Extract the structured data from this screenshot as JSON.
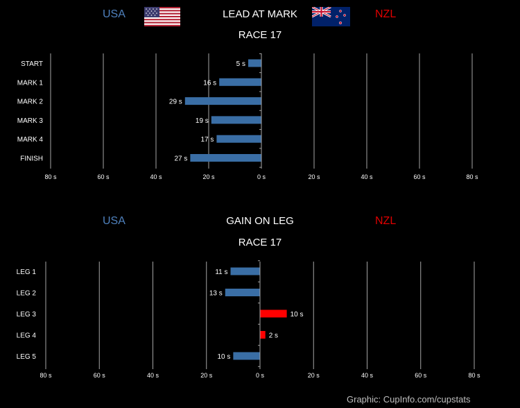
{
  "header1": {
    "usa": "USA",
    "nzl": "NZL",
    "title": "LEAD AT MARK",
    "subtitle": "RACE 17"
  },
  "header2": {
    "usa": "USA",
    "nzl": "NZL",
    "title": "GAIN ON LEG",
    "subtitle": "RACE 17"
  },
  "credit": "Graphic:  CupInfo.com/cupstats",
  "colors": {
    "usa": "#3a6ea5",
    "nzl": "#ff0000",
    "grid": "#a6a6a6",
    "usa_text": "#4f81bd",
    "nzl_text": "#e00000"
  },
  "icons": {
    "usa_flag": "usa-flag-icon",
    "nzl_flag": "nzl-flag-icon"
  },
  "chart_data": [
    {
      "type": "bar",
      "orientation": "horizontal",
      "title": "LEAD AT MARK",
      "subtitle": "RACE 17",
      "categories": [
        "START",
        "MARK 1",
        "MARK 2",
        "MARK 3",
        "MARK 4",
        "FINISH"
      ],
      "series": [
        {
          "name": "USA",
          "values": [
            5,
            16,
            29,
            19,
            17,
            27
          ],
          "value_labels": [
            "5 s",
            "16 s",
            "29 s",
            "19 s",
            "17 s",
            "27 s"
          ]
        },
        {
          "name": "NZL",
          "values": [
            0,
            0,
            0,
            0,
            0,
            0
          ],
          "value_labels": [
            "",
            "",
            "",
            "",
            "",
            ""
          ]
        }
      ],
      "xlim": [
        -80,
        80
      ],
      "xticks": [
        -80,
        -60,
        -40,
        -20,
        0,
        20,
        40,
        60,
        80
      ],
      "xtick_labels": [
        "80 s",
        "60 s",
        "40 s",
        "20 s",
        "0 s",
        "20 s",
        "40 s",
        "60 s",
        "80 s"
      ],
      "grid": true
    },
    {
      "type": "bar",
      "orientation": "horizontal",
      "title": "GAIN ON LEG",
      "subtitle": "RACE 17",
      "categories": [
        "LEG 1",
        "LEG 2",
        "LEG 3",
        "LEG 4",
        "LEG 5"
      ],
      "series": [
        {
          "name": "USA",
          "values": [
            11,
            13,
            0,
            0,
            10
          ],
          "value_labels": [
            "11 s",
            "13 s",
            "",
            "",
            "10 s"
          ]
        },
        {
          "name": "NZL",
          "values": [
            0,
            0,
            10,
            2,
            0
          ],
          "value_labels": [
            "",
            "",
            "10 s",
            "2 s",
            ""
          ]
        }
      ],
      "xlim": [
        -80,
        80
      ],
      "xticks": [
        -80,
        -60,
        -40,
        -20,
        0,
        20,
        40,
        60,
        80
      ],
      "xtick_labels": [
        "80 s",
        "60 s",
        "40 s",
        "20 s",
        "0 s",
        "20 s",
        "40 s",
        "60 s",
        "80 s"
      ],
      "grid": true
    }
  ]
}
